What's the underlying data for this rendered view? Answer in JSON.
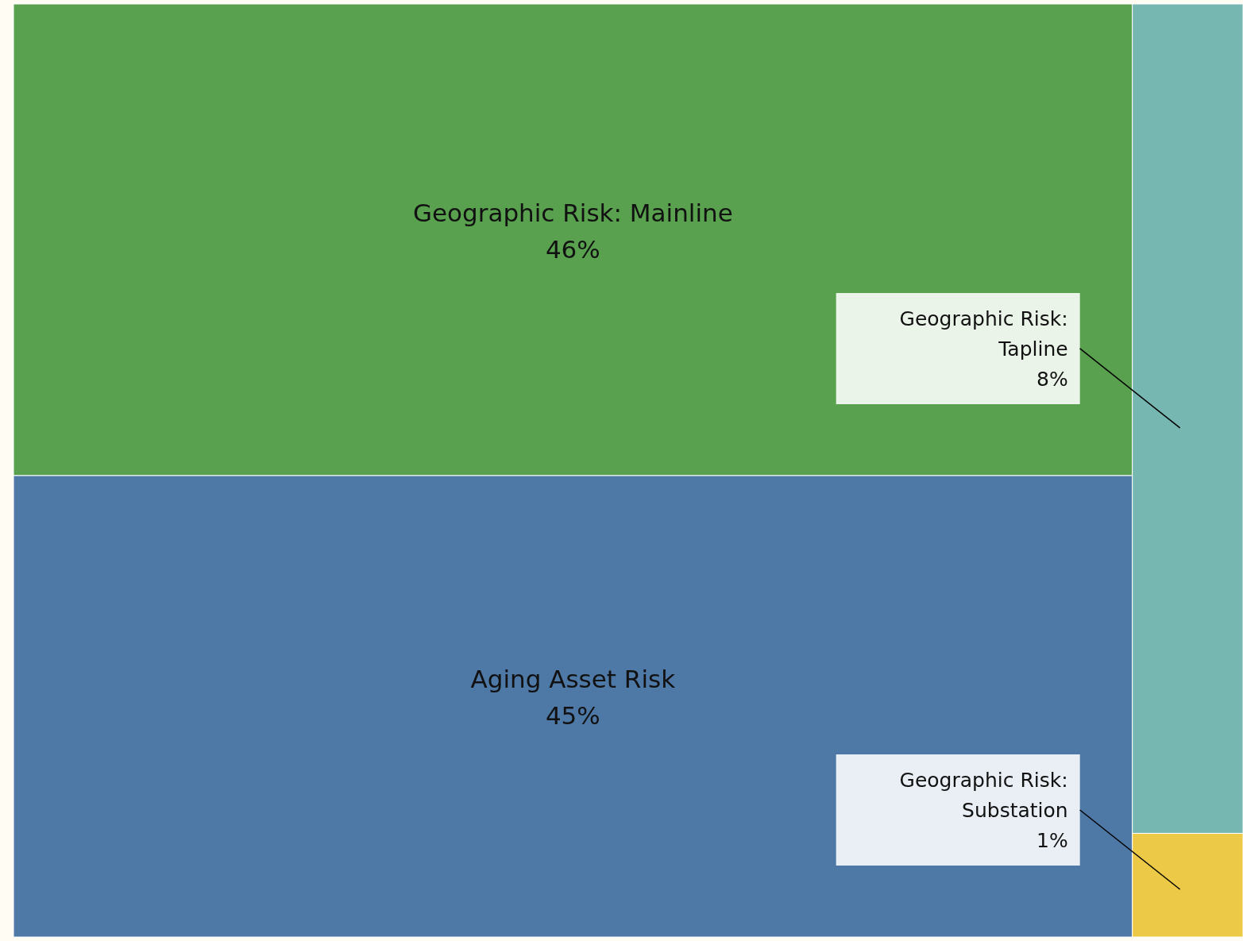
{
  "chart_data": {
    "type": "other",
    "categories": [
      "Geographic Risk: Mainline",
      "Aging Asset Risk",
      "Geographic Risk: Tapline",
      "Geographic Risk: Substation"
    ],
    "values": [
      46,
      45,
      8,
      1
    ],
    "value_labels": [
      "46%",
      "45%",
      "8%",
      "1%"
    ],
    "colors": [
      "#59a14f",
      "#4e79a7",
      "#76b7b2",
      "#edc948"
    ]
  }
}
